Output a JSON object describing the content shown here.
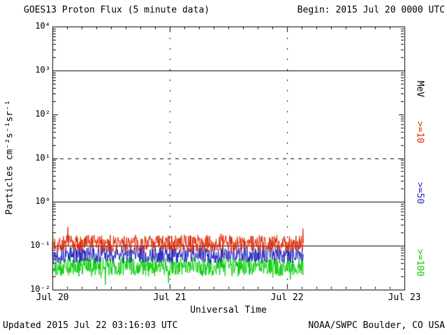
{
  "header": {
    "title": "GOES13 Proton Flux (5 minute data)",
    "begin": "Begin: 2015 Jul 20 0000 UTC"
  },
  "footer": {
    "updated": "Updated 2015 Jul 22 03:16:03 UTC",
    "credit": "NOAA/SWPC Boulder, CO USA"
  },
  "chart_data": {
    "type": "line",
    "title": "GOES13 Proton Flux (5 minute data)",
    "begin_label": "Begin: 2015 Jul 20 0000 UTC",
    "xlabel": "Universal Time",
    "ylabel": "Particles cm⁻²s⁻¹sr⁻¹",
    "right_axis_unit": "MeV",
    "x_range_days": [
      0,
      3
    ],
    "x_ticks": [
      {
        "label": "Jul 20",
        "day": 0
      },
      {
        "label": "Jul 21",
        "day": 1
      },
      {
        "label": "Jul 22",
        "day": 2
      },
      {
        "label": "Jul 23",
        "day": 3
      }
    ],
    "ylim_exp": [
      -2,
      4
    ],
    "y_ticks": [
      {
        "label": "10⁴",
        "exp": 4
      },
      {
        "label": "10³",
        "exp": 3
      },
      {
        "label": "10²",
        "exp": 2
      },
      {
        "label": "10¹",
        "exp": 1
      },
      {
        "label": "10⁰",
        "exp": 0
      },
      {
        "label": "10⁻¹",
        "exp": -1
      },
      {
        "label": "10⁻²",
        "exp": -2
      }
    ],
    "grid": {
      "solid_lines_exp": [
        3,
        0,
        -1
      ],
      "dashed_line_exp": 1,
      "day_dotted_lines": [
        1,
        2
      ]
    },
    "cadence_minutes": 5,
    "data_start_day": 0,
    "data_end_day": 2.14,
    "series": [
      {
        "name": "protons-gte-10MeV",
        "label": ">=10",
        "color": "#dd2800",
        "mean_log10": -0.95,
        "noise_log10": 0.2,
        "spike_log10": 0.35,
        "spike_prob": 0.012,
        "seed": 7,
        "approx_mean_flux": 0.11
      },
      {
        "name": "protons-gte-50MeV",
        "label": ">=50",
        "color": "#2222bb",
        "mean_log10": -1.2,
        "noise_log10": 0.2,
        "spike_log10": 0.15,
        "spike_prob": 0.006,
        "seed": 13,
        "approx_mean_flux": 0.06
      },
      {
        "name": "protons-gte-100MeV",
        "label": ">=100",
        "color": "#00cc00",
        "mean_log10": -1.48,
        "noise_log10": 0.22,
        "spike_log10": -0.22,
        "spike_prob": 0.02,
        "seed": 29,
        "approx_mean_flux": 0.033
      }
    ]
  }
}
